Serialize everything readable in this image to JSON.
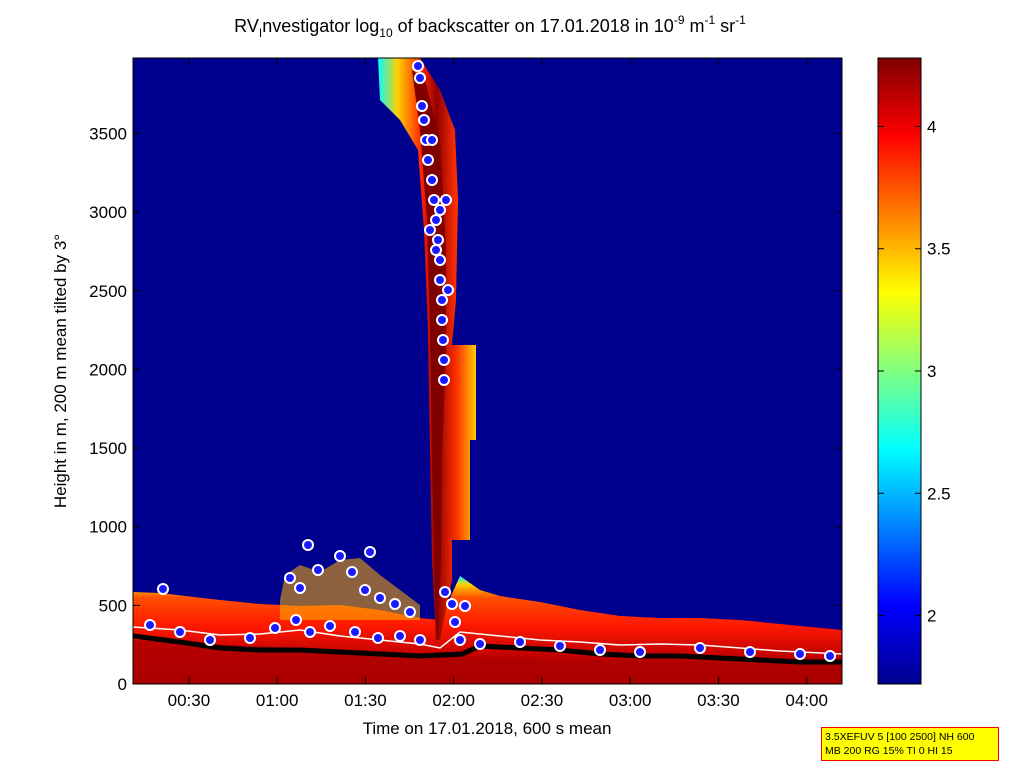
{
  "chart_data": {
    "type": "heatmap",
    "title": {
      "prefix": "RV",
      "subscript1": "I",
      "middle": "nvestigator log",
      "subscript2": "10",
      "suffix1": " of backscatter on 17.01.2018 in 10",
      "sup1": "-9",
      "suffix2": " m",
      "sup2": "-1",
      "suffix3": " sr",
      "sup3": "-1"
    },
    "xlabel": "Time on 17.01.2018, 600 s mean",
    "ylabel": "Height in m, 200 m mean tilted by 3°",
    "x_ticks": [
      "00:30",
      "01:00",
      "01:30",
      "02:00",
      "02:30",
      "03:00",
      "03:30",
      "04:00"
    ],
    "x_tick_minutes": [
      30,
      60,
      90,
      120,
      150,
      180,
      210,
      240
    ],
    "xlim_minutes": [
      11,
      252
    ],
    "y_ticks": [
      0,
      500,
      1000,
      1500,
      2000,
      2500,
      3000,
      3500
    ],
    "ylim": [
      0,
      3980
    ],
    "colorbar": {
      "ticks": [
        2,
        2.5,
        3,
        3.5,
        4
      ],
      "range": [
        1.72,
        4.28
      ],
      "colormap": "jet"
    },
    "colors": {
      "background_field": "#00008f",
      "marker_face": "#1a1aff",
      "marker_edge": "#ffffff",
      "cloud_base_line": "#000000",
      "info_box_bg": "#ffff00",
      "info_box_border": "#ff0000"
    },
    "info_box": {
      "line1": "3.5XEFUV 5 [100 2500] NH 600",
      "line2": "MB 200 RG 15% TI 0 HI 15"
    }
  }
}
